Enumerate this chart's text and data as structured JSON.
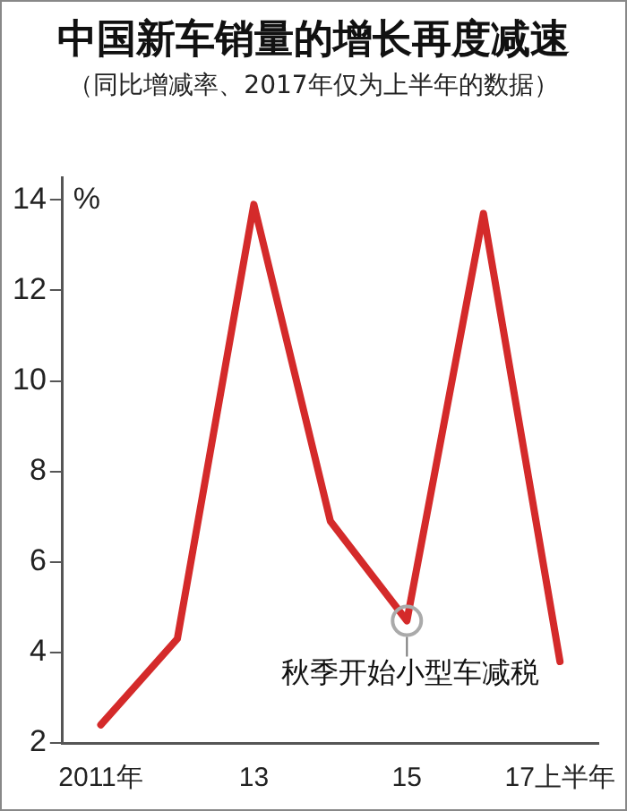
{
  "chart_data": {
    "type": "line",
    "title": "中国新车销量的增长再度减速",
    "subtitle": "（同比增减率、2017年仅为上半年的数据）",
    "ylabel": "%",
    "categories": [
      "2011年",
      null,
      "13",
      null,
      "15",
      null,
      "17上半年"
    ],
    "series": [
      {
        "color": "#d42a2a",
        "values": [
          2.4,
          4.3,
          13.9,
          6.9,
          4.7,
          13.7,
          3.8
        ]
      }
    ],
    "ylim": [
      2,
      14.5
    ],
    "yticks": [
      2,
      4,
      6,
      8,
      10,
      12,
      14
    ],
    "annotations": [
      {
        "text": "秋季开始小型车减税",
        "x": "15",
        "y": 4.7
      }
    ],
    "grid": false,
    "legend": false,
    "marker": "none",
    "line_style": "solid"
  }
}
